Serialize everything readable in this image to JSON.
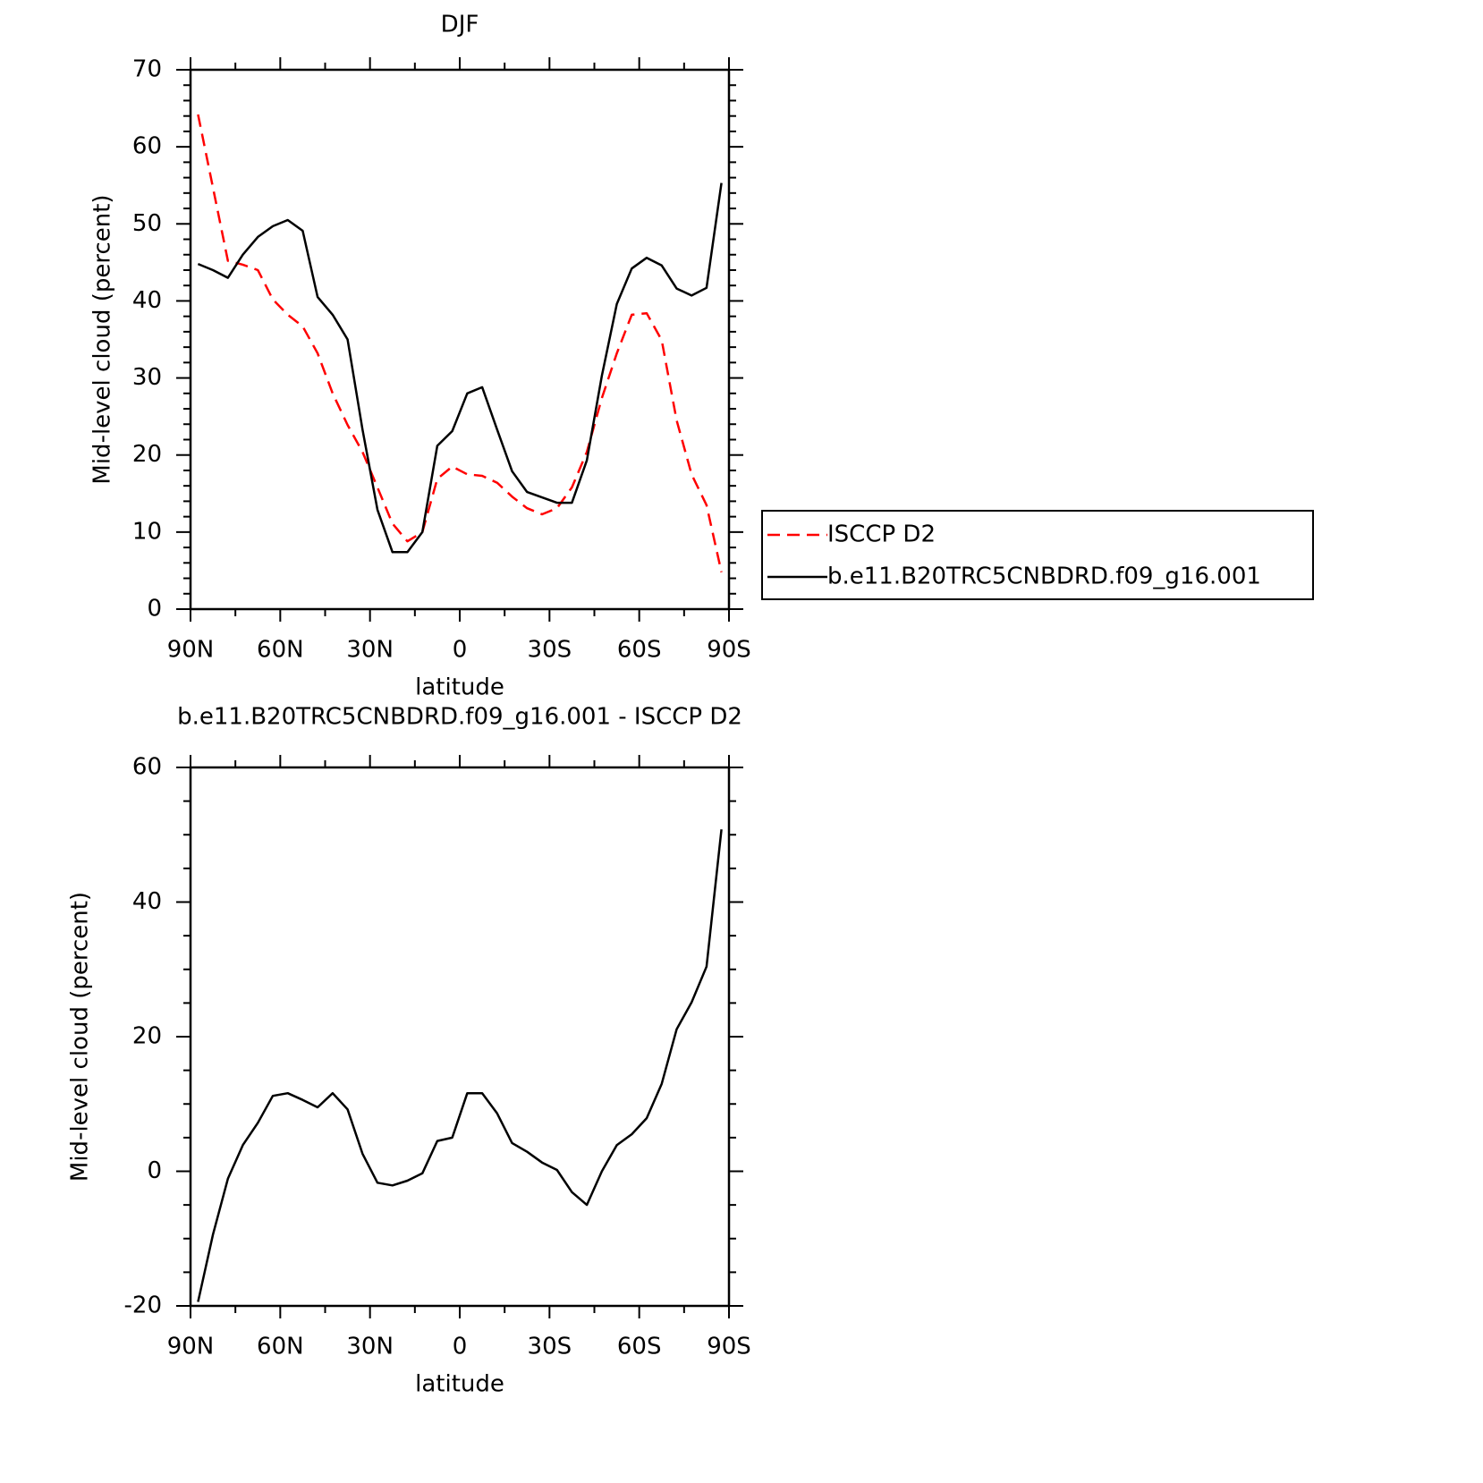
{
  "chart_data": [
    {
      "type": "line",
      "title": "DJF",
      "xlabel": "latitude",
      "ylabel": "Mid-level cloud (percent)",
      "x": [
        87.5,
        82.5,
        77.5,
        72.5,
        67.5,
        62.5,
        57.5,
        52.5,
        47.5,
        42.5,
        37.5,
        32.5,
        27.5,
        22.5,
        17.5,
        12.5,
        7.5,
        2.5,
        -2.5,
        -7.5,
        -12.5,
        -17.5,
        -22.5,
        -27.5,
        -32.5,
        -37.5,
        -42.5,
        -47.5,
        -52.5,
        -57.5,
        -62.5,
        -67.5,
        -72.5,
        -77.5,
        -82.5,
        -87.5
      ],
      "series": [
        {
          "name": "ISCCP D2",
          "color": "#ff0000",
          "dash": "dashed",
          "values": [
            64.2,
            54.7,
            45.2,
            44.7,
            44,
            40.2,
            38.2,
            36.7,
            33.2,
            28,
            23.9,
            20.4,
            15.8,
            11.1,
            8.8,
            10,
            16.9,
            18.5,
            17.5,
            17.3,
            16.4,
            14.6,
            13.1,
            12.3,
            13.1,
            15.8,
            20.4,
            27.4,
            33.2,
            38.2,
            38.4,
            34.9,
            24.5,
            17.5,
            13.5,
            4.8
          ]
        },
        {
          "name": "b.e11.B20TRC5CNBDRD.f09_g16.001",
          "color": "#000000",
          "dash": "solid",
          "values": [
            44.8,
            44,
            43,
            46,
            48.3,
            49.7,
            50.5,
            49.1,
            40.5,
            38.2,
            35,
            23.3,
            12.9,
            7.4,
            7.4,
            10,
            21.2,
            23.1,
            28,
            28.8,
            23.3,
            17.9,
            15.2,
            14.5,
            13.8,
            13.8,
            19.3,
            30.3,
            39.6,
            44.2,
            45.6,
            44.6,
            41.6,
            40.7,
            41.7,
            55.3
          ]
        }
      ],
      "xlim": [
        90,
        -90
      ],
      "xticks": [
        {
          "value": 90,
          "label": "90N"
        },
        {
          "value": 60,
          "label": "60N"
        },
        {
          "value": 30,
          "label": "30N"
        },
        0,
        {
          "value": -30,
          "label": "30S"
        },
        {
          "value": -60,
          "label": "60S"
        },
        {
          "value": -90,
          "label": "90S"
        }
      ],
      "xminorticks": [
        75,
        45,
        15,
        -15,
        -45,
        -75
      ],
      "ylim": [
        0,
        70
      ],
      "yticks": [
        0,
        10,
        20,
        30,
        40,
        50,
        60,
        70
      ],
      "yminorticks": [
        2,
        4,
        6,
        8,
        12,
        14,
        16,
        18,
        22,
        24,
        26,
        28,
        32,
        34,
        36,
        38,
        42,
        44,
        46,
        48,
        52,
        54,
        56,
        58,
        62,
        64,
        66,
        68
      ],
      "legend": "right"
    },
    {
      "type": "line",
      "title": "b.e11.B20TRC5CNBDRD.f09_g16.001 - ISCCP D2",
      "xlabel": "latitude",
      "ylabel": "Mid-level cloud (percent)",
      "x": [
        87.5,
        82.5,
        77.5,
        72.5,
        67.5,
        62.5,
        57.5,
        52.5,
        47.5,
        42.5,
        37.5,
        32.5,
        27.5,
        22.5,
        17.5,
        12.5,
        7.5,
        2.5,
        -2.5,
        -7.5,
        -12.5,
        -17.5,
        -22.5,
        -27.5,
        -32.5,
        -37.5,
        -42.5,
        -47.5,
        -52.5,
        -57.5,
        -62.5,
        -67.5,
        -72.5,
        -77.5,
        -82.5,
        -87.5
      ],
      "color": "#000000",
      "values": [
        -19.4,
        -9.4,
        -1.1,
        3.9,
        7.2,
        11.2,
        11.6,
        10.6,
        9.5,
        11.6,
        9.2,
        2.6,
        -1.7,
        -2.1,
        -1.4,
        -0.3,
        4.5,
        5,
        11.6,
        11.6,
        8.6,
        4.2,
        2.9,
        1.3,
        0.2,
        -3.1,
        -5,
        0,
        3.9,
        5.5,
        7.9,
        13,
        21.1,
        25.1,
        30.4,
        50.8
      ],
      "xlim": [
        90,
        -90
      ],
      "xticks": [
        {
          "value": 90,
          "label": "90N"
        },
        {
          "value": 60,
          "label": "60N"
        },
        {
          "value": 30,
          "label": "30N"
        },
        0,
        {
          "value": -30,
          "label": "30S"
        },
        {
          "value": -60,
          "label": "60S"
        },
        {
          "value": -90,
          "label": "90S"
        }
      ],
      "xminorticks": [
        75,
        45,
        15,
        -15,
        -45,
        -75
      ],
      "ylim": [
        -20,
        60
      ],
      "yticks": [
        -20,
        0,
        20,
        40,
        60
      ],
      "yminorticks": [
        -15,
        -10,
        -5,
        5,
        10,
        15,
        25,
        30,
        35,
        45,
        50,
        55
      ]
    }
  ]
}
